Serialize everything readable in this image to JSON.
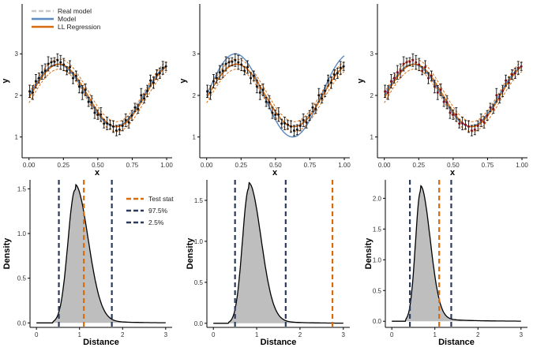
{
  "colors": {
    "real_model": "#c8c8c8",
    "model": "#5b88c0",
    "ll": "#d96b0f",
    "test_stat": "#d96b0f",
    "quantile": "#2d3a5c",
    "density_fill": "#bebebe",
    "points": "#111111",
    "points_red": "#7a1020"
  },
  "chart_data": [
    {
      "type": "line",
      "panel": "top-left",
      "xlabel": "x",
      "ylabel": "y",
      "xlim": [
        -0.05,
        1.04
      ],
      "ylim": [
        0.5,
        4.2
      ],
      "xticks": [
        "0.00",
        "0.25",
        "0.50",
        "0.75",
        "1.00"
      ],
      "xtick_values": [
        0,
        0.25,
        0.5,
        0.75,
        1.0
      ],
      "yticks": [
        "1",
        "2",
        "3"
      ],
      "ytick_values": [
        1,
        2,
        3
      ],
      "legend": {
        "placement": "top-left",
        "entries": [
          "Real model",
          "Model",
          "LL Regression"
        ]
      },
      "model_amp": 0.75,
      "point_color": "points"
    },
    {
      "type": "line",
      "panel": "top-middle",
      "xlabel": "x",
      "ylabel": "y",
      "xlim": [
        -0.05,
        1.04
      ],
      "ylim": [
        0.5,
        4.2
      ],
      "xticks": [
        "0.00",
        "0.25",
        "0.50",
        "0.75",
        "1.00"
      ],
      "xtick_values": [
        0,
        0.25,
        0.5,
        0.75,
        1.0
      ],
      "yticks": [
        "1",
        "2",
        "3"
      ],
      "ytick_values": [
        1,
        2,
        3
      ],
      "model_amp": 1.0,
      "point_color": "points"
    },
    {
      "type": "line",
      "panel": "top-right",
      "xlabel": "x",
      "ylabel": "y",
      "xlim": [
        -0.05,
        1.04
      ],
      "ylim": [
        0.5,
        4.2
      ],
      "xticks": [
        "0.00",
        "0.25",
        "0.50",
        "0.75",
        "1.00"
      ],
      "xtick_values": [
        0,
        0.25,
        0.5,
        0.75,
        1.0
      ],
      "yticks": [
        "1",
        "2",
        "3"
      ],
      "ytick_values": [
        1,
        2,
        3
      ],
      "model_amp": 0.75,
      "point_color": "points_red"
    },
    {
      "type": "area",
      "panel": "bottom-left",
      "xlabel": "Distance",
      "ylabel": "Density",
      "xlim": [
        -0.15,
        3.15
      ],
      "ylim": [
        -0.05,
        1.6
      ],
      "xticks": [
        "0",
        "1",
        "2",
        "3"
      ],
      "xtick_values": [
        0,
        1,
        2,
        3
      ],
      "yticks": [
        "0.0",
        "0.5",
        "1.0",
        "1.5"
      ],
      "ytick_values": [
        0,
        0.5,
        1.0,
        1.5
      ],
      "density": {
        "peak_x": 0.9,
        "peak": 1.49,
        "sd_left": 0.17,
        "sd_right": 0.3,
        "start": 0.38,
        "end": 2.9
      },
      "test_stat": 1.1,
      "q975": 1.75,
      "q025": 0.52,
      "legend": {
        "placement": "top-right",
        "entries": [
          "Test stat",
          "97.5%",
          "2.5%"
        ]
      }
    },
    {
      "type": "area",
      "panel": "bottom-middle",
      "xlabel": "Distance",
      "ylabel": "Density",
      "xlim": [
        -0.15,
        3.15
      ],
      "ylim": [
        -0.05,
        1.75
      ],
      "xticks": [
        "0",
        "1",
        "2",
        "3"
      ],
      "xtick_values": [
        0,
        1,
        2,
        3
      ],
      "yticks": [
        "0.0",
        "0.5",
        "1.0",
        "1.5"
      ],
      "ytick_values": [
        0,
        0.5,
        1.0,
        1.5
      ],
      "density": {
        "peak_x": 0.82,
        "peak": 1.65,
        "sd_left": 0.15,
        "sd_right": 0.28,
        "start": 0.36,
        "end": 2.9
      },
      "test_stat": 2.75,
      "q975": 1.67,
      "q025": 0.5
    },
    {
      "type": "area",
      "panel": "bottom-right",
      "xlabel": "Distance",
      "ylabel": "Density",
      "xlim": [
        -0.15,
        3.15
      ],
      "ylim": [
        -0.1,
        2.3
      ],
      "xticks": [
        "0",
        "1",
        "2",
        "3"
      ],
      "xtick_values": [
        0,
        1,
        2,
        3
      ],
      "yticks": [
        "0.0",
        "0.5",
        "1.0",
        "1.5",
        "2.0"
      ],
      "ytick_values": [
        0,
        0.5,
        1.0,
        1.5,
        2.0
      ],
      "density": {
        "peak_x": 0.67,
        "peak": 2.12,
        "sd_left": 0.12,
        "sd_right": 0.22,
        "start": 0.32,
        "end": 2.9
      },
      "test_stat": 1.1,
      "q975": 1.38,
      "q025": 0.42
    }
  ]
}
